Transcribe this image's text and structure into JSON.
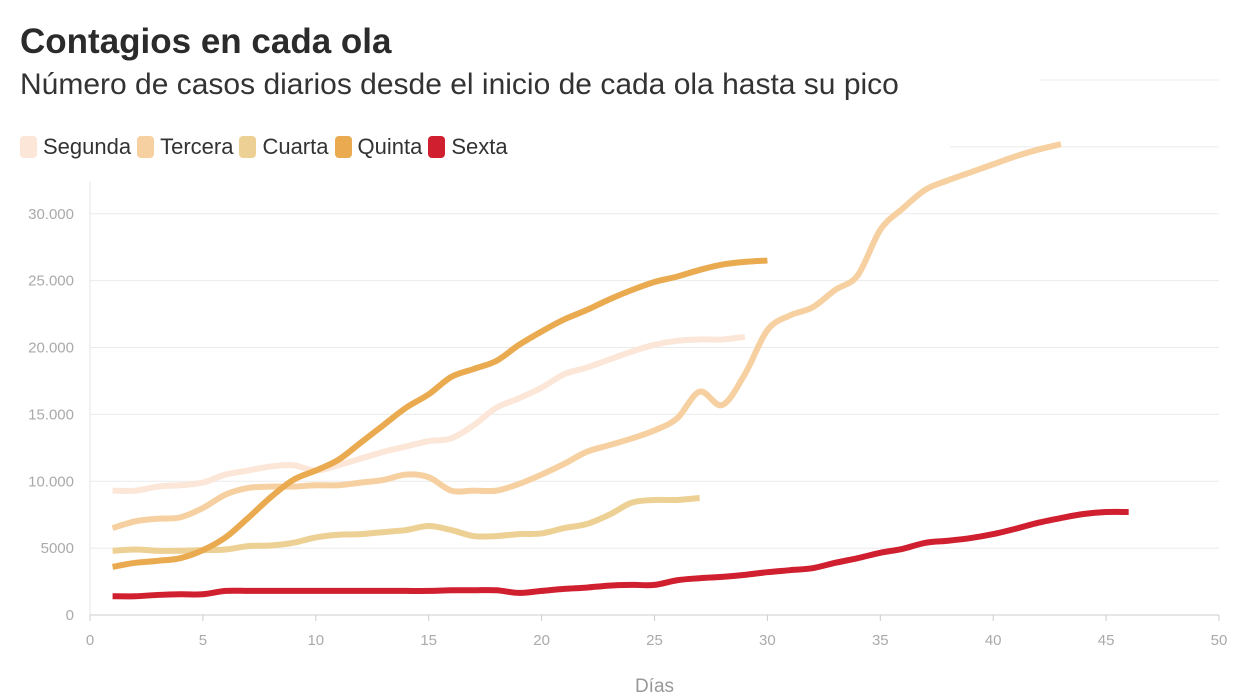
{
  "chart_data": {
    "type": "line",
    "title": "Contagios en cada ola",
    "subtitle": "Número de casos diarios desde el inicio de cada ola hasta su pico",
    "xlabel": "Días",
    "ylabel": "",
    "xlim": [
      0,
      50
    ],
    "ylim": [
      0,
      40000
    ],
    "xticks": [
      0,
      5,
      10,
      15,
      20,
      25,
      30,
      35,
      40,
      45,
      50
    ],
    "yticks": [
      {
        "v": 0,
        "label": "0"
      },
      {
        "v": 5000,
        "label": "5000"
      },
      {
        "v": 10000,
        "label": "10.000"
      },
      {
        "v": 15000,
        "label": "15.000"
      },
      {
        "v": 20000,
        "label": "20.000"
      },
      {
        "v": 25000,
        "label": "25.000"
      },
      {
        "v": 30000,
        "label": "30.000"
      },
      {
        "v": 35000,
        "label": ""
      },
      {
        "v": 40000,
        "label": ""
      }
    ],
    "legend_position": "top-left",
    "series": [
      {
        "name": "Segunda",
        "color": "#fce6d8",
        "values": [
          9300,
          9300,
          9600,
          9700,
          9900,
          10500,
          10800,
          11100,
          11200,
          10800,
          11200,
          11700,
          12200,
          12600,
          13000,
          13200,
          14200,
          15500,
          16200,
          17000,
          18000,
          18500,
          19100,
          19700,
          20200,
          20500,
          20600,
          20600,
          20800
        ]
      },
      {
        "name": "Tercera",
        "color": "#f6d0a0",
        "values": [
          6500,
          7000,
          7200,
          7300,
          8000,
          9000,
          9500,
          9600,
          9600,
          9700,
          9700,
          9900,
          10100,
          10500,
          10300,
          9300,
          9300,
          9300,
          9800,
          10500,
          11300,
          12200,
          12700,
          13200,
          13800,
          14700,
          16700,
          15700,
          18000,
          21300,
          22400,
          23000,
          24300,
          25400,
          28800,
          30400,
          31800,
          32500,
          33100,
          33700,
          34300,
          34800,
          35200
        ]
      },
      {
        "name": "Cuarta",
        "color": "#edd093",
        "values": [
          4800,
          4900,
          4800,
          4800,
          4850,
          4900,
          5150,
          5200,
          5400,
          5800,
          6000,
          6050,
          6200,
          6350,
          6650,
          6350,
          5900,
          5900,
          6050,
          6100,
          6500,
          6800,
          7500,
          8400,
          8600,
          8600,
          8750
        ]
      },
      {
        "name": "Quinta",
        "color": "#e9aa50",
        "values": [
          3600,
          3900,
          4050,
          4250,
          4850,
          5800,
          7250,
          8800,
          10100,
          10800,
          11600,
          12900,
          14200,
          15500,
          16500,
          17800,
          18400,
          19000,
          20200,
          21200,
          22100,
          22800,
          23600,
          24300,
          24900,
          25300,
          25800,
          26200,
          26400,
          26500
        ]
      },
      {
        "name": "Sexta",
        "color": "#d01f2e",
        "values": [
          1400,
          1400,
          1500,
          1550,
          1550,
          1800,
          1800,
          1800,
          1800,
          1800,
          1800,
          1800,
          1800,
          1800,
          1800,
          1850,
          1850,
          1850,
          1650,
          1800,
          1950,
          2050,
          2200,
          2250,
          2250,
          2600,
          2750,
          2850,
          3000,
          3200,
          3350,
          3500,
          3900,
          4250,
          4650,
          4950,
          5400,
          5550,
          5750,
          6050,
          6450,
          6900,
          7250,
          7550,
          7700,
          7700
        ]
      }
    ]
  }
}
